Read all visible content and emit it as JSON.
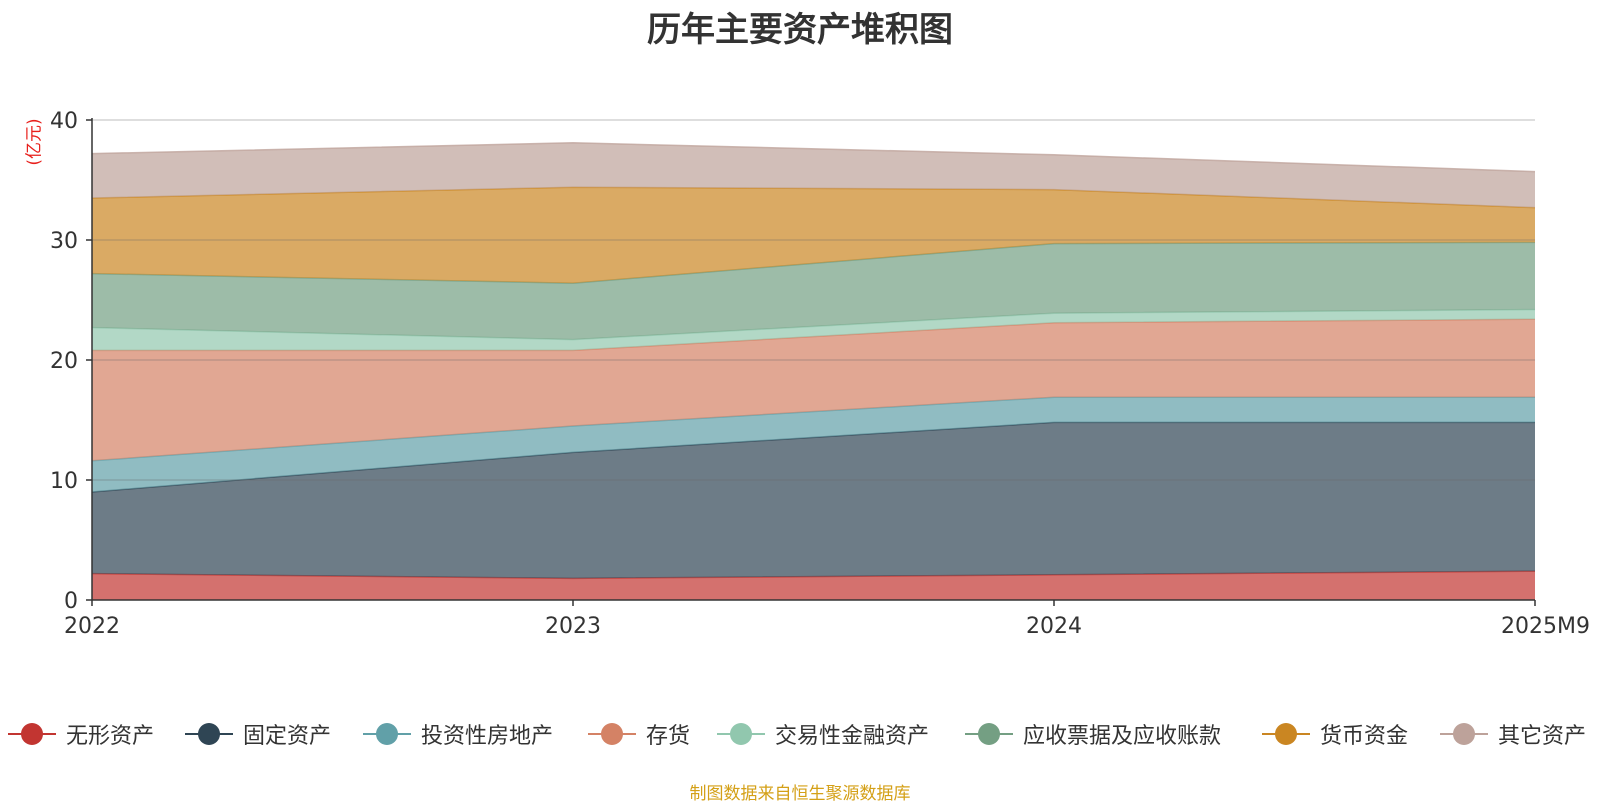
{
  "chart_data": {
    "type": "area",
    "stacked": true,
    "title": "历年主要资产堆积图",
    "ylabel": "(亿元)",
    "xlabel": "",
    "categories": [
      "2022",
      "2023",
      "2024",
      "2025M9"
    ],
    "ylim": [
      0,
      40
    ],
    "yticks": [
      0,
      10,
      20,
      30,
      40
    ],
    "grid": true,
    "legend_position": "bottom",
    "series": [
      {
        "name": "无形资产",
        "color": "#c23531",
        "values": [
          2.2,
          1.8,
          2.1,
          2.4
        ]
      },
      {
        "name": "固定资产",
        "color": "#2f4554",
        "values": [
          6.8,
          10.5,
          12.7,
          12.4
        ]
      },
      {
        "name": "投资性房地产",
        "color": "#61a0a8",
        "values": [
          2.6,
          2.2,
          2.1,
          2.1
        ]
      },
      {
        "name": "存货",
        "color": "#d48265",
        "values": [
          9.2,
          6.3,
          6.2,
          6.5
        ]
      },
      {
        "name": "交易性金融资产",
        "color": "#91c7ae",
        "values": [
          1.9,
          0.9,
          0.8,
          0.8
        ]
      },
      {
        "name": "应收票据及应收账款",
        "color": "#749f83",
        "values": [
          4.5,
          4.7,
          5.8,
          5.6
        ]
      },
      {
        "name": "货币资金",
        "color": "#ca8622",
        "values": [
          6.3,
          8.0,
          4.5,
          2.9
        ]
      },
      {
        "name": "其它资产",
        "color": "#bda29a",
        "values": [
          3.7,
          3.7,
          2.9,
          3.0
        ]
      }
    ]
  },
  "footer": {
    "source": "制图数据来自恒生聚源数据库"
  }
}
